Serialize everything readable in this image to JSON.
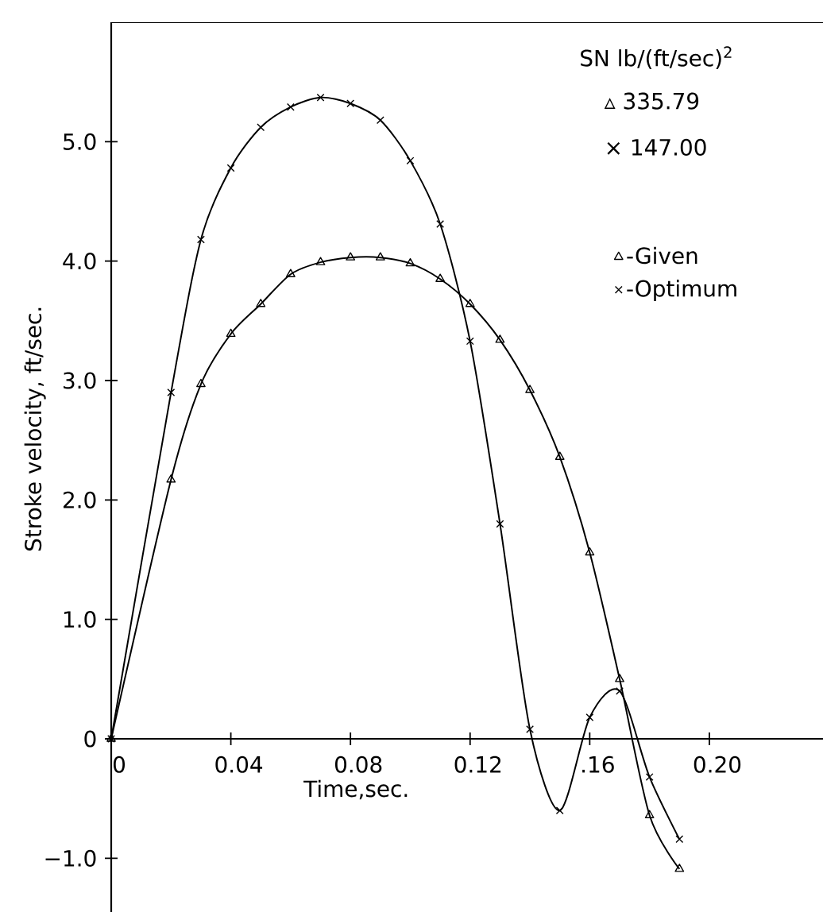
{
  "chart_data": {
    "type": "line",
    "xlabel": "Time,sec.",
    "ylabel": "Stroke velocity, ft/sec.",
    "annotations": [
      "SN lb/(ft/sec)$^{2}$",
      "▵ 335.79",
      "× 147.00"
    ],
    "xlim": [
      0,
      0.238
    ],
    "ylim": [
      -1.45,
      6.0
    ],
    "xticks": [
      0,
      0.04,
      0.08,
      0.12,
      {
        "value": 0.16,
        "label": ".16"
      },
      {
        "value": 0.2,
        "label": "0.20"
      }
    ],
    "yticks": [
      {
        "value": -1,
        "label": "−1.0"
      },
      0,
      {
        "value": 1,
        "label": "1.0"
      },
      {
        "value": 2,
        "label": "2.0"
      },
      {
        "value": 3,
        "label": "3.0"
      },
      {
        "value": 4,
        "label": "4.0"
      },
      {
        "value": 5,
        "label": "5.0"
      }
    ],
    "x": [
      0,
      0.02,
      0.03,
      0.04,
      0.05,
      0.06,
      0.07,
      0.08,
      0.09,
      0.1,
      0.11,
      0.12,
      0.13,
      0.14,
      0.15,
      0.16,
      0.17,
      0.18,
      0.19
    ],
    "series": [
      {
        "name": "-Given",
        "color": "#000000",
        "marker": "triangle",
        "values": [
          0,
          2.17,
          2.97,
          3.39,
          3.64,
          3.89,
          3.99,
          4.03,
          4.03,
          3.98,
          3.85,
          3.64,
          3.34,
          2.92,
          2.36,
          1.56,
          0.5,
          -0.64,
          -1.09
        ]
      },
      {
        "name": "-Optimum",
        "color": "#000000",
        "marker": "cross",
        "values": [
          0,
          2.9,
          4.18,
          4.78,
          5.12,
          5.29,
          5.37,
          5.32,
          5.18,
          4.84,
          4.31,
          3.33,
          1.8,
          0.08,
          -0.6,
          0.18,
          0.4,
          -0.32,
          -0.84
        ]
      }
    ],
    "grid": false,
    "legend": "top right",
    "line_style": "solid"
  }
}
